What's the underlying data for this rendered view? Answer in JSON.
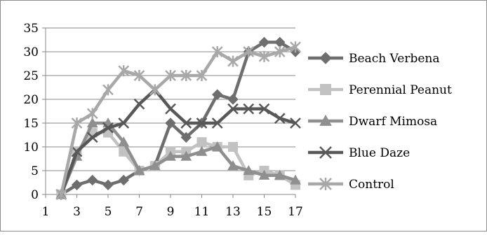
{
  "chart_data": {
    "type": "line",
    "x": [
      2,
      3,
      4,
      5,
      6,
      7,
      8,
      9,
      10,
      11,
      12,
      13,
      14,
      15,
      16,
      17
    ],
    "xlim": [
      1,
      17
    ],
    "xticks": [
      1,
      3,
      5,
      7,
      9,
      11,
      13,
      15,
      17
    ],
    "ylim": [
      0,
      35
    ],
    "yticks": [
      0,
      5,
      10,
      15,
      20,
      25,
      30,
      35
    ],
    "grid": true,
    "legend_position": "right",
    "series": [
      {
        "name": "Beach Verbena",
        "color": "#6e6e6e",
        "marker": "diamond",
        "values": [
          0,
          2,
          3,
          2,
          3,
          5,
          6,
          15,
          12,
          15,
          21,
          20,
          30,
          32,
          32,
          30
        ]
      },
      {
        "name": "Perennial Peanut",
        "color": "#c2c2c2",
        "marker": "square",
        "values": [
          0,
          9,
          13,
          13,
          9,
          5,
          6,
          9,
          9,
          11,
          10,
          10,
          4,
          5,
          4,
          2
        ]
      },
      {
        "name": "Dwarf Mimosa",
        "color": "#8f8f8f",
        "marker": "triangle",
        "values": [
          0,
          8,
          15,
          15,
          11,
          5,
          6,
          8,
          8,
          9,
          10,
          6,
          5,
          4,
          4,
          3
        ]
      },
      {
        "name": "Blue Daze",
        "color": "#585858",
        "marker": "x",
        "values": [
          0,
          9,
          12,
          14,
          15,
          19,
          22,
          18,
          15,
          15,
          15,
          18,
          18,
          18,
          16,
          15
        ]
      },
      {
        "name": "Control",
        "color": "#a8a8a8",
        "marker": "asterisk",
        "values": [
          0,
          15,
          17,
          22,
          26,
          25,
          22,
          25,
          25,
          25,
          30,
          28,
          30,
          29,
          30,
          31
        ]
      }
    ]
  }
}
